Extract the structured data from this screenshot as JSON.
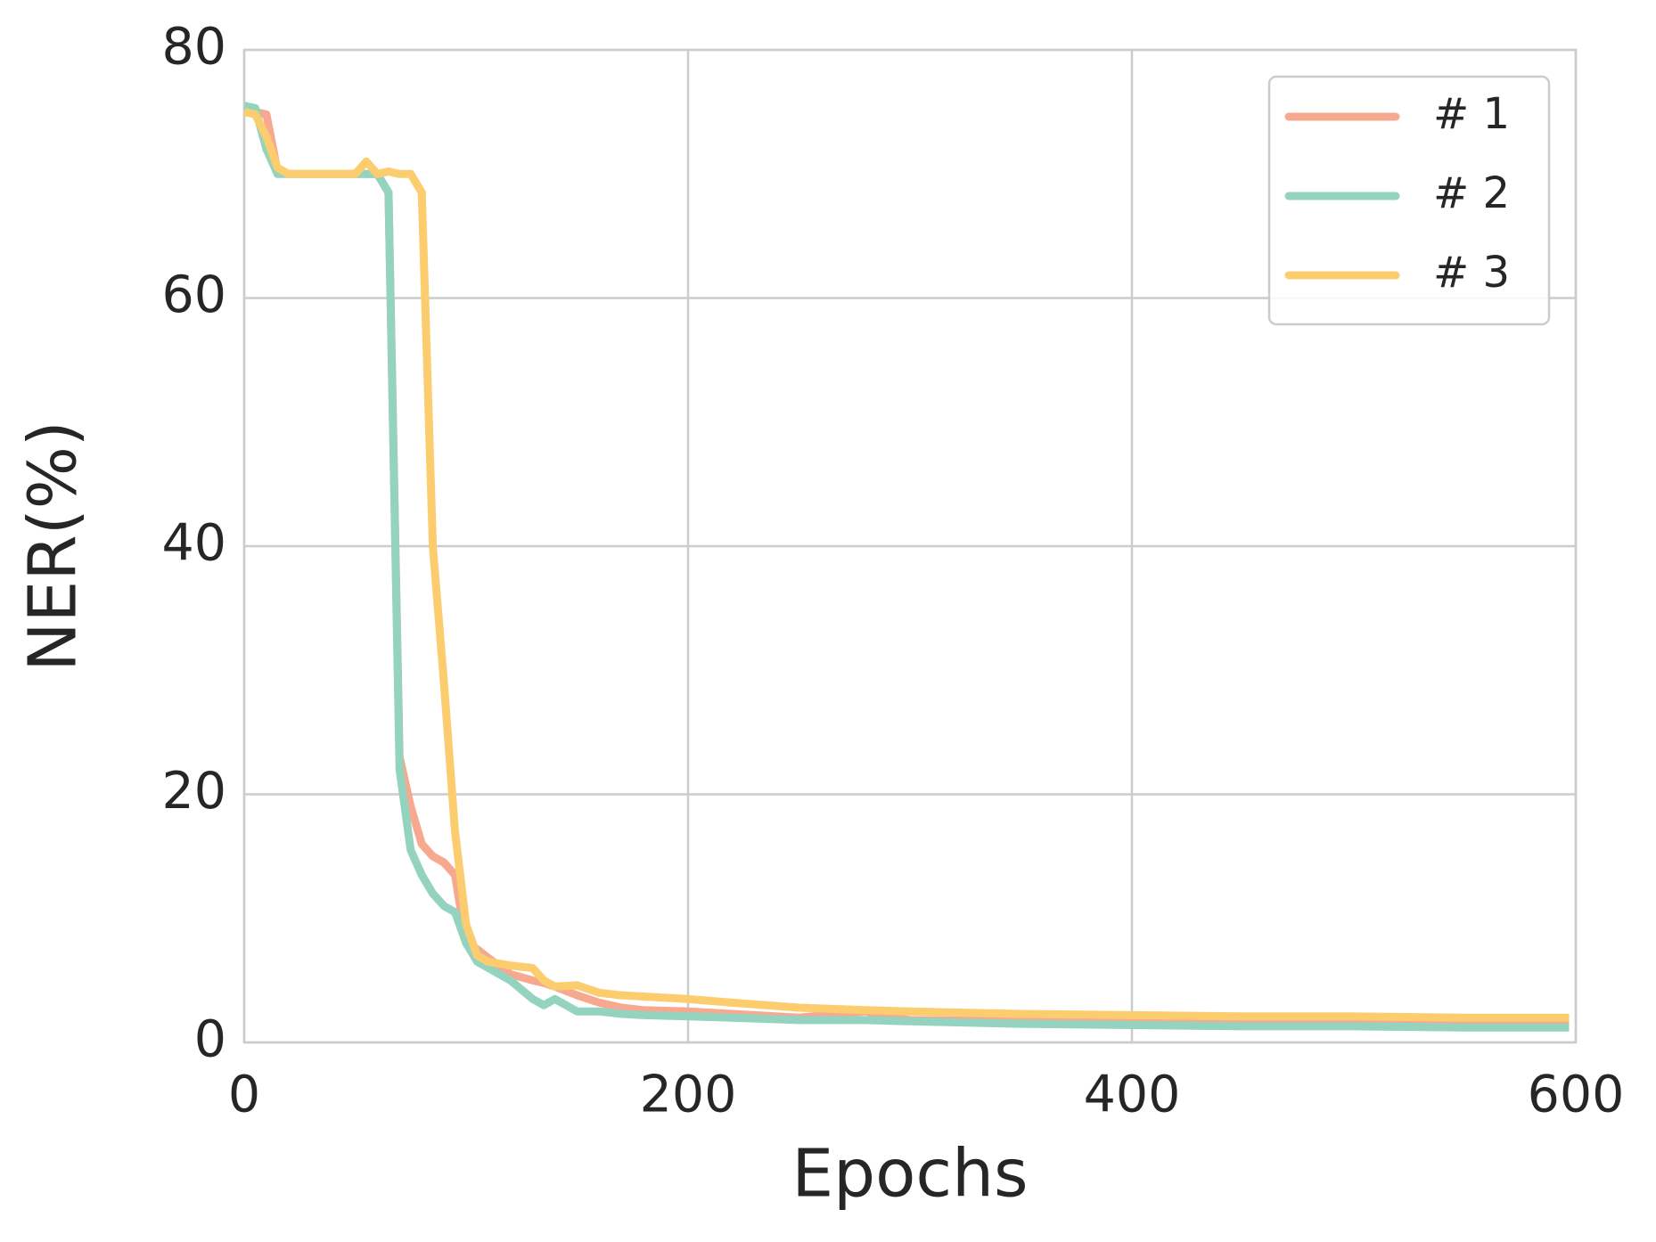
{
  "chart_data": {
    "type": "line",
    "xlabel": "Epochs",
    "ylabel": "NER(%)",
    "x": [
      0,
      5,
      10,
      15,
      20,
      30,
      40,
      50,
      55,
      60,
      65,
      70,
      75,
      80,
      85,
      90,
      95,
      100,
      105,
      110,
      120,
      130,
      135,
      140,
      150,
      160,
      170,
      180,
      200,
      220,
      250,
      280,
      300,
      350,
      400,
      450,
      500,
      550,
      597
    ],
    "series": [
      {
        "name": "# 1",
        "color": "#f7a98f",
        "values": [
          75,
          75,
          74.8,
          70.2,
          70,
          70,
          70,
          70,
          70,
          70,
          68.5,
          23,
          19,
          16,
          15,
          14.5,
          13.5,
          8,
          7.5,
          6.8,
          5.5,
          5,
          4.8,
          4.5,
          3.8,
          3.2,
          2.8,
          2.6,
          2.5,
          2.3,
          2,
          2.5,
          1.8,
          1.7,
          1.6,
          1.5,
          1.5,
          1.4,
          1.4
        ]
      },
      {
        "name": "# 2",
        "color": "#93d3bf",
        "values": [
          75.5,
          75.3,
          72,
          70,
          70,
          70,
          70,
          70,
          70,
          70,
          68.5,
          22,
          15.5,
          13.5,
          12,
          11,
          10.5,
          8,
          6.5,
          6,
          5,
          3.5,
          3,
          3.5,
          2.5,
          2.5,
          2.3,
          2.2,
          2.1,
          2,
          1.8,
          1.8,
          1.7,
          1.5,
          1.4,
          1.3,
          1.3,
          1.2,
          1.2
        ]
      },
      {
        "name": "# 3",
        "color": "#fbcd6e",
        "values": [
          75,
          74.8,
          73,
          70.5,
          70,
          70,
          70,
          70,
          71,
          70,
          70.2,
          70,
          70,
          68.5,
          40,
          29,
          17,
          9.5,
          7,
          6.5,
          6.2,
          6,
          5,
          4.5,
          4.6,
          4,
          3.8,
          3.7,
          3.5,
          3.2,
          2.8,
          2.6,
          2.5,
          2.3,
          2.2,
          2.1,
          2.1,
          2,
          2
        ]
      }
    ],
    "xlim": [
      0,
      600
    ],
    "xticks": [
      0,
      200,
      400,
      600
    ],
    "ylim": [
      0,
      80
    ],
    "yticks": [
      0,
      20,
      40,
      60,
      80
    ],
    "grid": true,
    "legend": "upper right"
  }
}
